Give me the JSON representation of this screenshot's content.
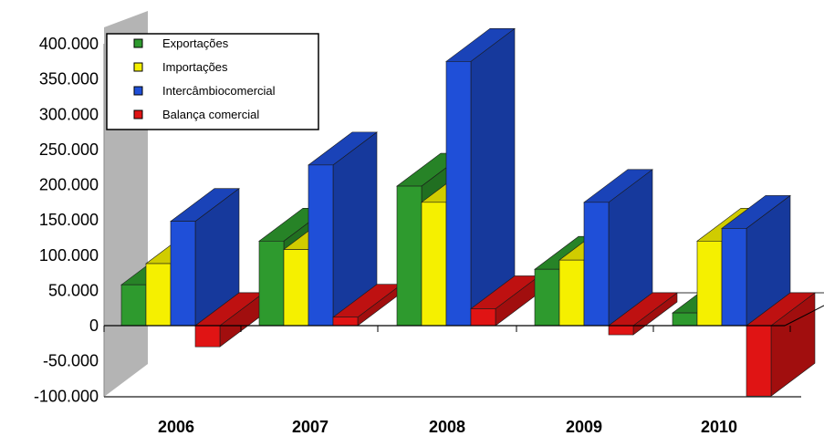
{
  "chart_data": {
    "type": "bar",
    "title": "",
    "xlabel": "",
    "ylabel": "",
    "categories": [
      "2006",
      "2007",
      "2008",
      "2009",
      "2010"
    ],
    "ylim": [
      -100000,
      400000
    ],
    "yticks": [
      "400.000",
      "350.000",
      "300.000",
      "250.000",
      "200.000",
      "150.000",
      "100.000",
      "50.000",
      "0",
      "-50.000",
      "-100.000"
    ],
    "ytick_values": [
      400000,
      350000,
      300000,
      250000,
      200000,
      150000,
      100000,
      50000,
      0,
      -50000,
      -100000
    ],
    "series": [
      {
        "name": "Exportações",
        "values": [
          58000,
          120000,
          198000,
          80000,
          18000
        ],
        "color": "#2e9a2e"
      },
      {
        "name": "Importações",
        "values": [
          88000,
          108000,
          175000,
          93000,
          120000
        ],
        "color": "#f5f000"
      },
      {
        "name": "Intercâmbio comercial",
        "values": [
          148000,
          228000,
          375000,
          175000,
          138000
        ],
        "color": "#1f4fd8"
      },
      {
        "name": "Balança comercial",
        "values": [
          -30000,
          12000,
          24000,
          -13000,
          -100000
        ],
        "color": "#e01414"
      }
    ],
    "legend": {
      "position": "top-left",
      "entries": [
        "Exportações",
        "Importações",
        "Intercâmbiocomercial",
        "Balança comercial"
      ]
    },
    "grid": false
  }
}
